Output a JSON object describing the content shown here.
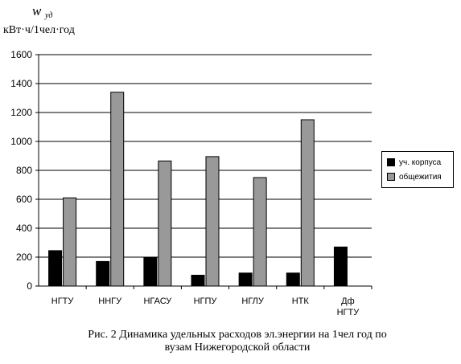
{
  "unit_var": "w",
  "unit_sub": "уд",
  "unit_text": "кВт·ч/1чел·год",
  "caption_line1": "Рис. 2 Динамика удельных расходов эл.энергии на 1чел год по",
  "caption_line2": "вузам Нижегородской области",
  "chart_data": {
    "type": "bar",
    "categories": [
      "НГТУ",
      "ННГУ",
      "НГАСУ",
      "НГПУ",
      "НГЛУ",
      "НТК",
      [
        "Дф",
        "НГТУ"
      ]
    ],
    "series": [
      {
        "name": "уч. корпуса",
        "color": "#000000",
        "values": [
          245,
          170,
          195,
          75,
          90,
          90,
          270
        ]
      },
      {
        "name": "общежития",
        "color": "#999999",
        "values": [
          610,
          1340,
          865,
          895,
          750,
          1150,
          null
        ]
      }
    ],
    "ylim": [
      0,
      1600
    ],
    "yticks": [
      0,
      200,
      400,
      600,
      800,
      1000,
      1200,
      1400,
      1600
    ],
    "grid": true,
    "legend_position": "right"
  }
}
